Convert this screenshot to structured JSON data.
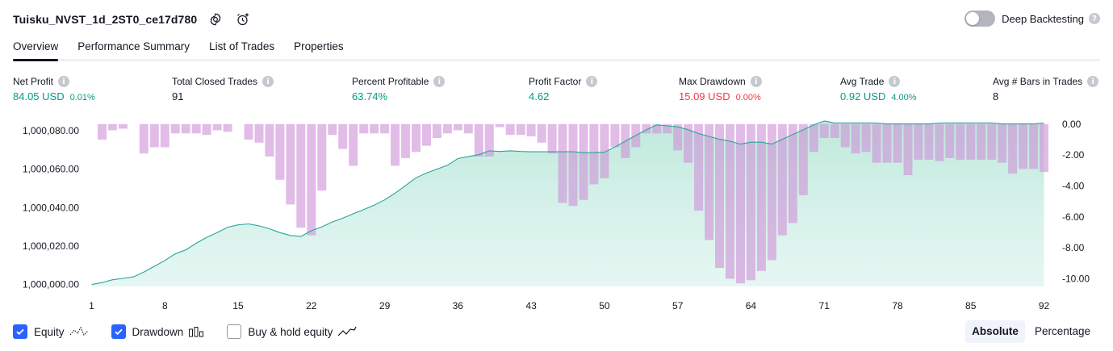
{
  "header": {
    "title": "Tuisku_NVST_1d_2ST0_ce17d780",
    "deep_backtesting_label": "Deep Backtesting",
    "deep_backtesting_enabled": false
  },
  "tabs": [
    {
      "label": "Overview",
      "active": true
    },
    {
      "label": "Performance Summary",
      "active": false
    },
    {
      "label": "List of Trades",
      "active": false
    },
    {
      "label": "Properties",
      "active": false
    }
  ],
  "metrics": {
    "net_profit": {
      "label": "Net Profit",
      "value": "84.05 USD",
      "pct": "0.01%"
    },
    "total_closed_trades": {
      "label": "Total Closed Trades",
      "value": "91"
    },
    "percent_profitable": {
      "label": "Percent Profitable",
      "value": "63.74%"
    },
    "profit_factor": {
      "label": "Profit Factor",
      "value": "4.62"
    },
    "max_drawdown": {
      "label": "Max Drawdown",
      "value": "15.09 USD",
      "pct": "0.00%"
    },
    "avg_trade": {
      "label": "Avg Trade",
      "value": "0.92 USD",
      "pct": "4.00%"
    },
    "avg_bars": {
      "label": "Avg # Bars in Trades",
      "value": "8"
    }
  },
  "colors": {
    "positive": "#089981",
    "negative": "#f23645",
    "equity_line": "#26a69a",
    "equity_fill": "#d2f0e8",
    "drawdown_bar": "#ce93d8",
    "accent": "#2962ff"
  },
  "legend": {
    "equity": {
      "label": "Equity",
      "checked": true
    },
    "drawdown": {
      "label": "Drawdown",
      "checked": true
    },
    "buy_hold": {
      "label": "Buy & hold equity",
      "checked": false
    }
  },
  "mode": {
    "absolute": "Absolute",
    "percentage": "Percentage",
    "selected": "Absolute"
  },
  "chart_data": {
    "type": "area",
    "x_ticks": [
      "1",
      "8",
      "15",
      "22",
      "29",
      "36",
      "43",
      "50",
      "57",
      "64",
      "71",
      "78",
      "85",
      "92"
    ],
    "y_left_ticks": [
      "1,000,000.00",
      "1,000,020.00",
      "1,000,040.00",
      "1,000,060.00",
      "1,000,080.00"
    ],
    "y_right_ticks": [
      "0.00",
      "-2.00",
      "-4.00",
      "-6.00",
      "-8.00",
      "-10.00"
    ],
    "ylim_left": [
      999999,
      1000085
    ],
    "ylim_right": [
      -10.5,
      0.2
    ],
    "series": [
      {
        "type": "area",
        "axis": "left",
        "x": [
          1,
          2,
          3,
          4,
          5,
          6,
          7,
          8,
          9,
          10,
          11,
          12,
          13,
          14,
          15,
          16,
          17,
          18,
          19,
          20,
          21,
          22,
          23,
          24,
          25,
          26,
          27,
          28,
          29,
          30,
          31,
          32,
          33,
          34,
          35,
          36,
          37,
          38,
          39,
          40,
          41,
          42,
          43,
          44,
          45,
          46,
          47,
          48,
          49,
          50,
          51,
          52,
          53,
          54,
          55,
          56,
          57,
          58,
          59,
          60,
          61,
          62,
          63,
          64,
          65,
          66,
          67,
          68,
          69,
          70,
          71,
          72,
          73,
          74,
          75,
          76,
          77,
          78,
          79,
          80,
          81,
          82,
          83,
          84,
          85,
          86,
          87,
          88,
          89,
          90,
          91,
          92
        ],
        "y": [
          1000000,
          1000001,
          1000002.5,
          1000003.2,
          1000004,
          1000006.5,
          1000009.5,
          1000012.5,
          1000016,
          1000018,
          1000021.5,
          1000024.5,
          1000027,
          1000029.8,
          1000031,
          1000031.5,
          1000030.5,
          1000029,
          1000027,
          1000025.5,
          1000025,
          1000028,
          1000030,
          1000032.5,
          1000034.5,
          1000036.8,
          1000039,
          1000041.3,
          1000044,
          1000047.5,
          1000051.5,
          1000055.5,
          1000058,
          1000060,
          1000062,
          1000065.5,
          1000066.5,
          1000067.5,
          1000069.5,
          1000069.2,
          1000069.5,
          1000069.2,
          1000069,
          1000069,
          1000069,
          1000069,
          1000069,
          1000068.5,
          1000068.6,
          1000068.8,
          1000071.5,
          1000074.5,
          1000077.5,
          1000080.5,
          1000083,
          1000082.5,
          1000082,
          1000080.5,
          1000078.5,
          1000077,
          1000075.5,
          1000074.5,
          1000073,
          1000074,
          1000074,
          1000073,
          1000075.5,
          1000078,
          1000080.5,
          1000083,
          1000085,
          1000084,
          1000084,
          1000084,
          1000084,
          1000084,
          1000083.5,
          1000083.5,
          1000083.5,
          1000083.5,
          1000083.5,
          1000084,
          1000084,
          1000084,
          1000084,
          1000084,
          1000084,
          1000083.5,
          1000083.5,
          1000083.5,
          1000083.5,
          1000084
        ]
      },
      {
        "type": "bar",
        "axis": "right",
        "x": [
          1,
          2,
          3,
          4,
          5,
          6,
          7,
          8,
          9,
          10,
          11,
          12,
          13,
          14,
          15,
          16,
          17,
          18,
          19,
          20,
          21,
          22,
          23,
          24,
          25,
          26,
          27,
          28,
          29,
          30,
          31,
          32,
          33,
          34,
          35,
          36,
          37,
          38,
          39,
          40,
          41,
          42,
          43,
          44,
          45,
          46,
          47,
          48,
          49,
          50,
          51,
          52,
          53,
          54,
          55,
          56,
          57,
          58,
          59,
          60,
          61,
          62,
          63,
          64,
          65,
          66,
          67,
          68,
          69,
          70,
          71,
          72,
          73,
          74,
          75,
          76,
          77,
          78,
          79,
          80,
          81,
          82,
          83,
          84,
          85,
          86,
          87,
          88,
          89,
          90,
          91,
          92
        ],
        "y": [
          0,
          -1,
          -0.4,
          -0.3,
          0,
          -1.9,
          -1.5,
          -1.5,
          -0.6,
          -0.6,
          -0.6,
          -0.7,
          -0.4,
          -0.5,
          0,
          -1,
          -1.2,
          -2.1,
          -3.6,
          -5.2,
          -6.7,
          -7.2,
          -4.3,
          -0.7,
          -1.6,
          -2.7,
          -0.6,
          -0.6,
          -0.6,
          -2.7,
          -2.2,
          -1.8,
          -1.4,
          -0.9,
          -0.6,
          -0.4,
          -0.6,
          -2.1,
          -2.1,
          -0.2,
          -0.7,
          -0.7,
          -0.8,
          -1.2,
          -1.9,
          -5.1,
          -5.3,
          -4.9,
          -3.9,
          -3.5,
          -1.5,
          -2.2,
          -1.5,
          -0.6,
          -0.6,
          -0.6,
          -1.7,
          -2.5,
          -5.6,
          -7.5,
          -9.3,
          -10,
          -10.3,
          -10.1,
          -9.5,
          -8.8,
          -7.2,
          -6.4,
          -4.6,
          -1.8,
          -0.9,
          -0.9,
          -1.5,
          -1.9,
          -1.8,
          -2.5,
          -2.5,
          -2.5,
          -3.3,
          -2.3,
          -2.3,
          -2.4,
          -2.2,
          -2.3,
          -2.3,
          -2.3,
          -2.3,
          -2.5,
          -3.2,
          -2.9,
          -2.9,
          -3.1
        ]
      }
    ]
  }
}
